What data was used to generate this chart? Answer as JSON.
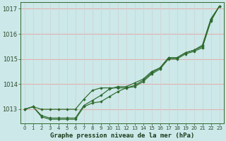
{
  "hours": [
    0,
    1,
    2,
    3,
    4,
    5,
    6,
    7,
    8,
    9,
    10,
    11,
    12,
    13,
    14,
    15,
    16,
    17,
    18,
    19,
    20,
    21,
    22,
    23
  ],
  "upper": [
    1013.0,
    1013.1,
    1013.0,
    1013.0,
    1013.0,
    1013.0,
    1013.0,
    1013.4,
    1013.75,
    1013.85,
    1013.85,
    1013.85,
    1013.85,
    1013.95,
    1014.15,
    1014.45,
    1014.65,
    1015.05,
    1015.05,
    1015.25,
    1015.35,
    1015.55,
    1016.6,
    1017.1
  ],
  "mid": [
    1013.0,
    1013.1,
    1012.75,
    1012.65,
    1012.65,
    1012.65,
    1012.65,
    1013.15,
    1013.35,
    1013.55,
    1013.8,
    1013.9,
    1013.9,
    1014.05,
    1014.2,
    1014.5,
    1014.65,
    1015.05,
    1015.05,
    1015.25,
    1015.35,
    1015.5,
    1016.55,
    1017.1
  ],
  "lower": [
    1013.0,
    1013.1,
    1012.7,
    1012.6,
    1012.6,
    1012.6,
    1012.6,
    1013.1,
    1013.25,
    1013.3,
    1013.5,
    1013.7,
    1013.85,
    1013.9,
    1014.1,
    1014.4,
    1014.6,
    1015.0,
    1015.0,
    1015.2,
    1015.3,
    1015.45,
    1016.5,
    1017.1
  ],
  "yticks": [
    1013,
    1014,
    1015,
    1016,
    1017
  ],
  "bg_color": "#cce8e8",
  "grid_color_major": "#f0c0c0",
  "grid_color_minor": "#e8e8e8",
  "line_color": "#2d6a2d",
  "xlabel": "Graphe pression niveau de la mer (hPa)"
}
